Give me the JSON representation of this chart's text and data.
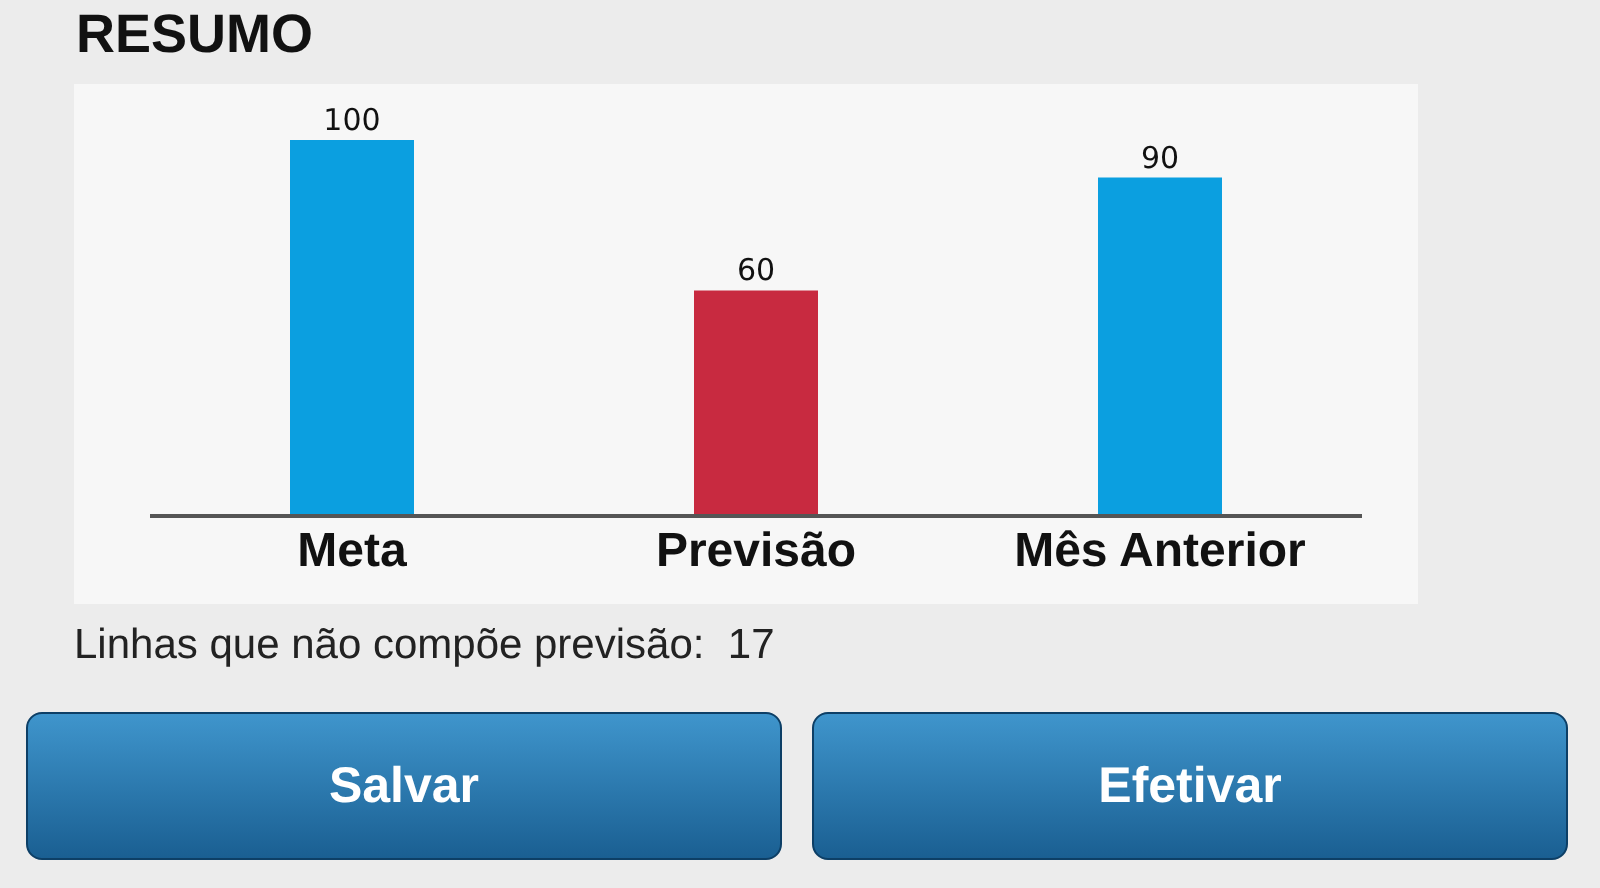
{
  "chart_data": {
    "type": "bar",
    "title": "RESUMO",
    "categories": [
      "Meta",
      "Previsão",
      "Mês Anterior"
    ],
    "values": [
      100,
      60,
      90
    ],
    "colors": [
      "#0b9fe0",
      "#c82a40",
      "#0b9fe0"
    ],
    "data_labels": true,
    "tick_labels": "x",
    "annotations": [
      "Linhas que não compõe previsão:  17",
      "Salvar",
      "Efetivar"
    ]
  }
}
